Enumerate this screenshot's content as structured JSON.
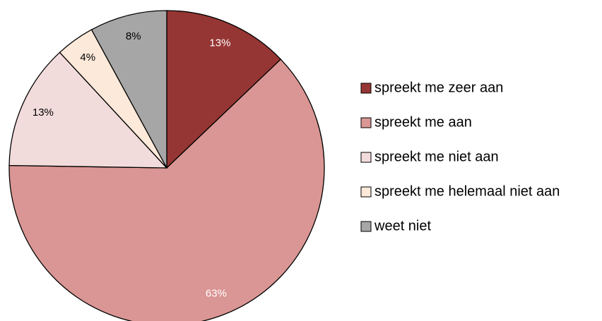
{
  "chart_data": {
    "type": "pie",
    "categories": [
      "spreekt me zeer aan",
      "spreekt me aan",
      "spreekt me niet aan",
      "spreekt me helemaal niet aan",
      "weet niet"
    ],
    "values": [
      13,
      63,
      13,
      4,
      8
    ],
    "value_labels": [
      "13%",
      "63%",
      "13%",
      "4%",
      "8%"
    ],
    "colors": [
      "#963634",
      "#da9694",
      "#f2dcdb",
      "#fde9d9",
      "#a6a6a6"
    ],
    "legend": "right"
  }
}
